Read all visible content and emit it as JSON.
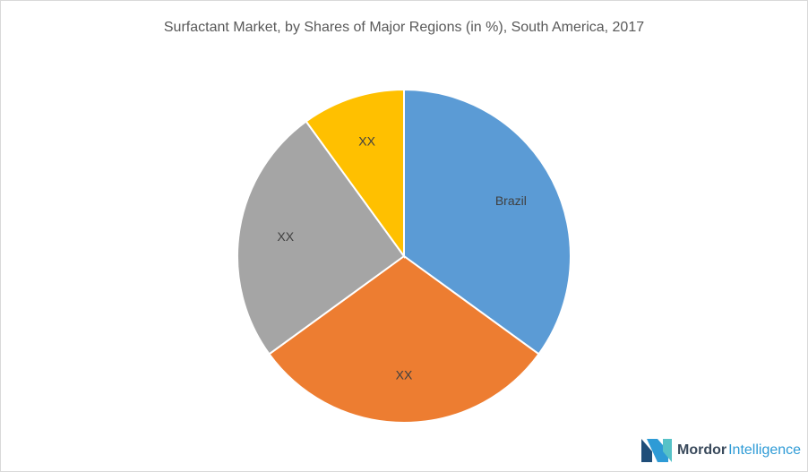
{
  "chart_data": {
    "type": "pie",
    "title": "Surfactant Market, by  Shares of Major Regions (in %), South America, 2017",
    "categories": [
      "Brazil",
      "XX",
      "XX",
      "XX"
    ],
    "values": [
      35,
      30,
      25,
      10
    ],
    "colors": [
      "#5b9bd5",
      "#ed7d31",
      "#a5a5a5",
      "#ffc000"
    ]
  },
  "logo": {
    "name_bold": "Mordor",
    "name_light": "Intelligence"
  }
}
